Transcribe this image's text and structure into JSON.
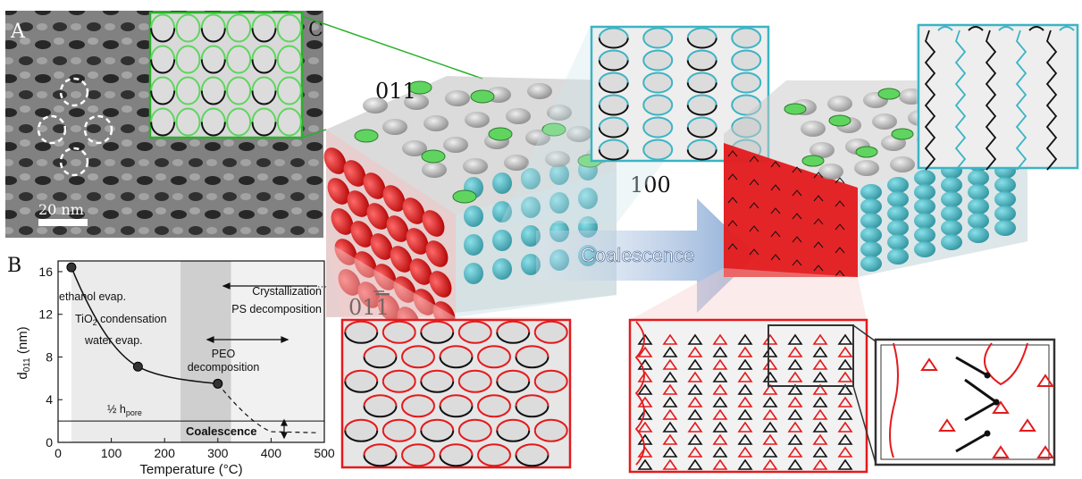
{
  "panel_labels": {
    "a": "A",
    "b": "B",
    "c": "C"
  },
  "sem": {
    "scale_bar": "20 nm"
  },
  "plane_labels": {
    "p011": "011",
    "p100": "100",
    "p01bar1_main": "01",
    "p01bar1_digit": "1"
  },
  "arrow": {
    "label": "Coalescence"
  },
  "chart_data": {
    "type": "scatter",
    "xlabel": "Temperature (°C)",
    "ylabel_main": "d",
    "ylabel_sub": "011",
    "ylabel_unit": "(nm)",
    "xlim": [
      0,
      500
    ],
    "ylim": [
      0,
      17
    ],
    "x_ticks": [
      "0",
      "100",
      "200",
      "300",
      "400",
      "500"
    ],
    "y_ticks": [
      "0",
      "4",
      "8",
      "12",
      "16"
    ],
    "points": [
      {
        "x": 25,
        "y": 16.4
      },
      {
        "x": 150,
        "y": 7.1
      },
      {
        "x": 300,
        "y": 5.5
      }
    ],
    "half_pore_line": 2.0,
    "half_pore_label": "½ h",
    "half_pore_sub": "pore",
    "dashed_extension": [
      {
        "x": 300,
        "y": 5.5
      },
      {
        "x": 400,
        "y": 1.0
      },
      {
        "x": 490,
        "y": 0.9
      }
    ],
    "bands": [
      {
        "from": 25,
        "to": 230,
        "shade": "#ebebeb"
      },
      {
        "from": 230,
        "to": 325,
        "shade": "#cfcfcf"
      },
      {
        "from": 325,
        "to": 500,
        "shade": "#f1f1f1"
      }
    ],
    "annotations": {
      "ethanol": "ethanol evap.",
      "tio2_a": "TiO",
      "tio2_sub": "2",
      "tio2_b": " condensation",
      "water": "water evap.",
      "peo_1": "PEO",
      "peo_2": "decomposition",
      "cryst": "Crystallization",
      "ps": "PS decomposition",
      "coalescence": "Coalescence"
    }
  },
  "colors": {
    "red": "#e41a1c",
    "cyan": "#3cb4c4",
    "green": "#5fd55f",
    "black": "#111111"
  }
}
